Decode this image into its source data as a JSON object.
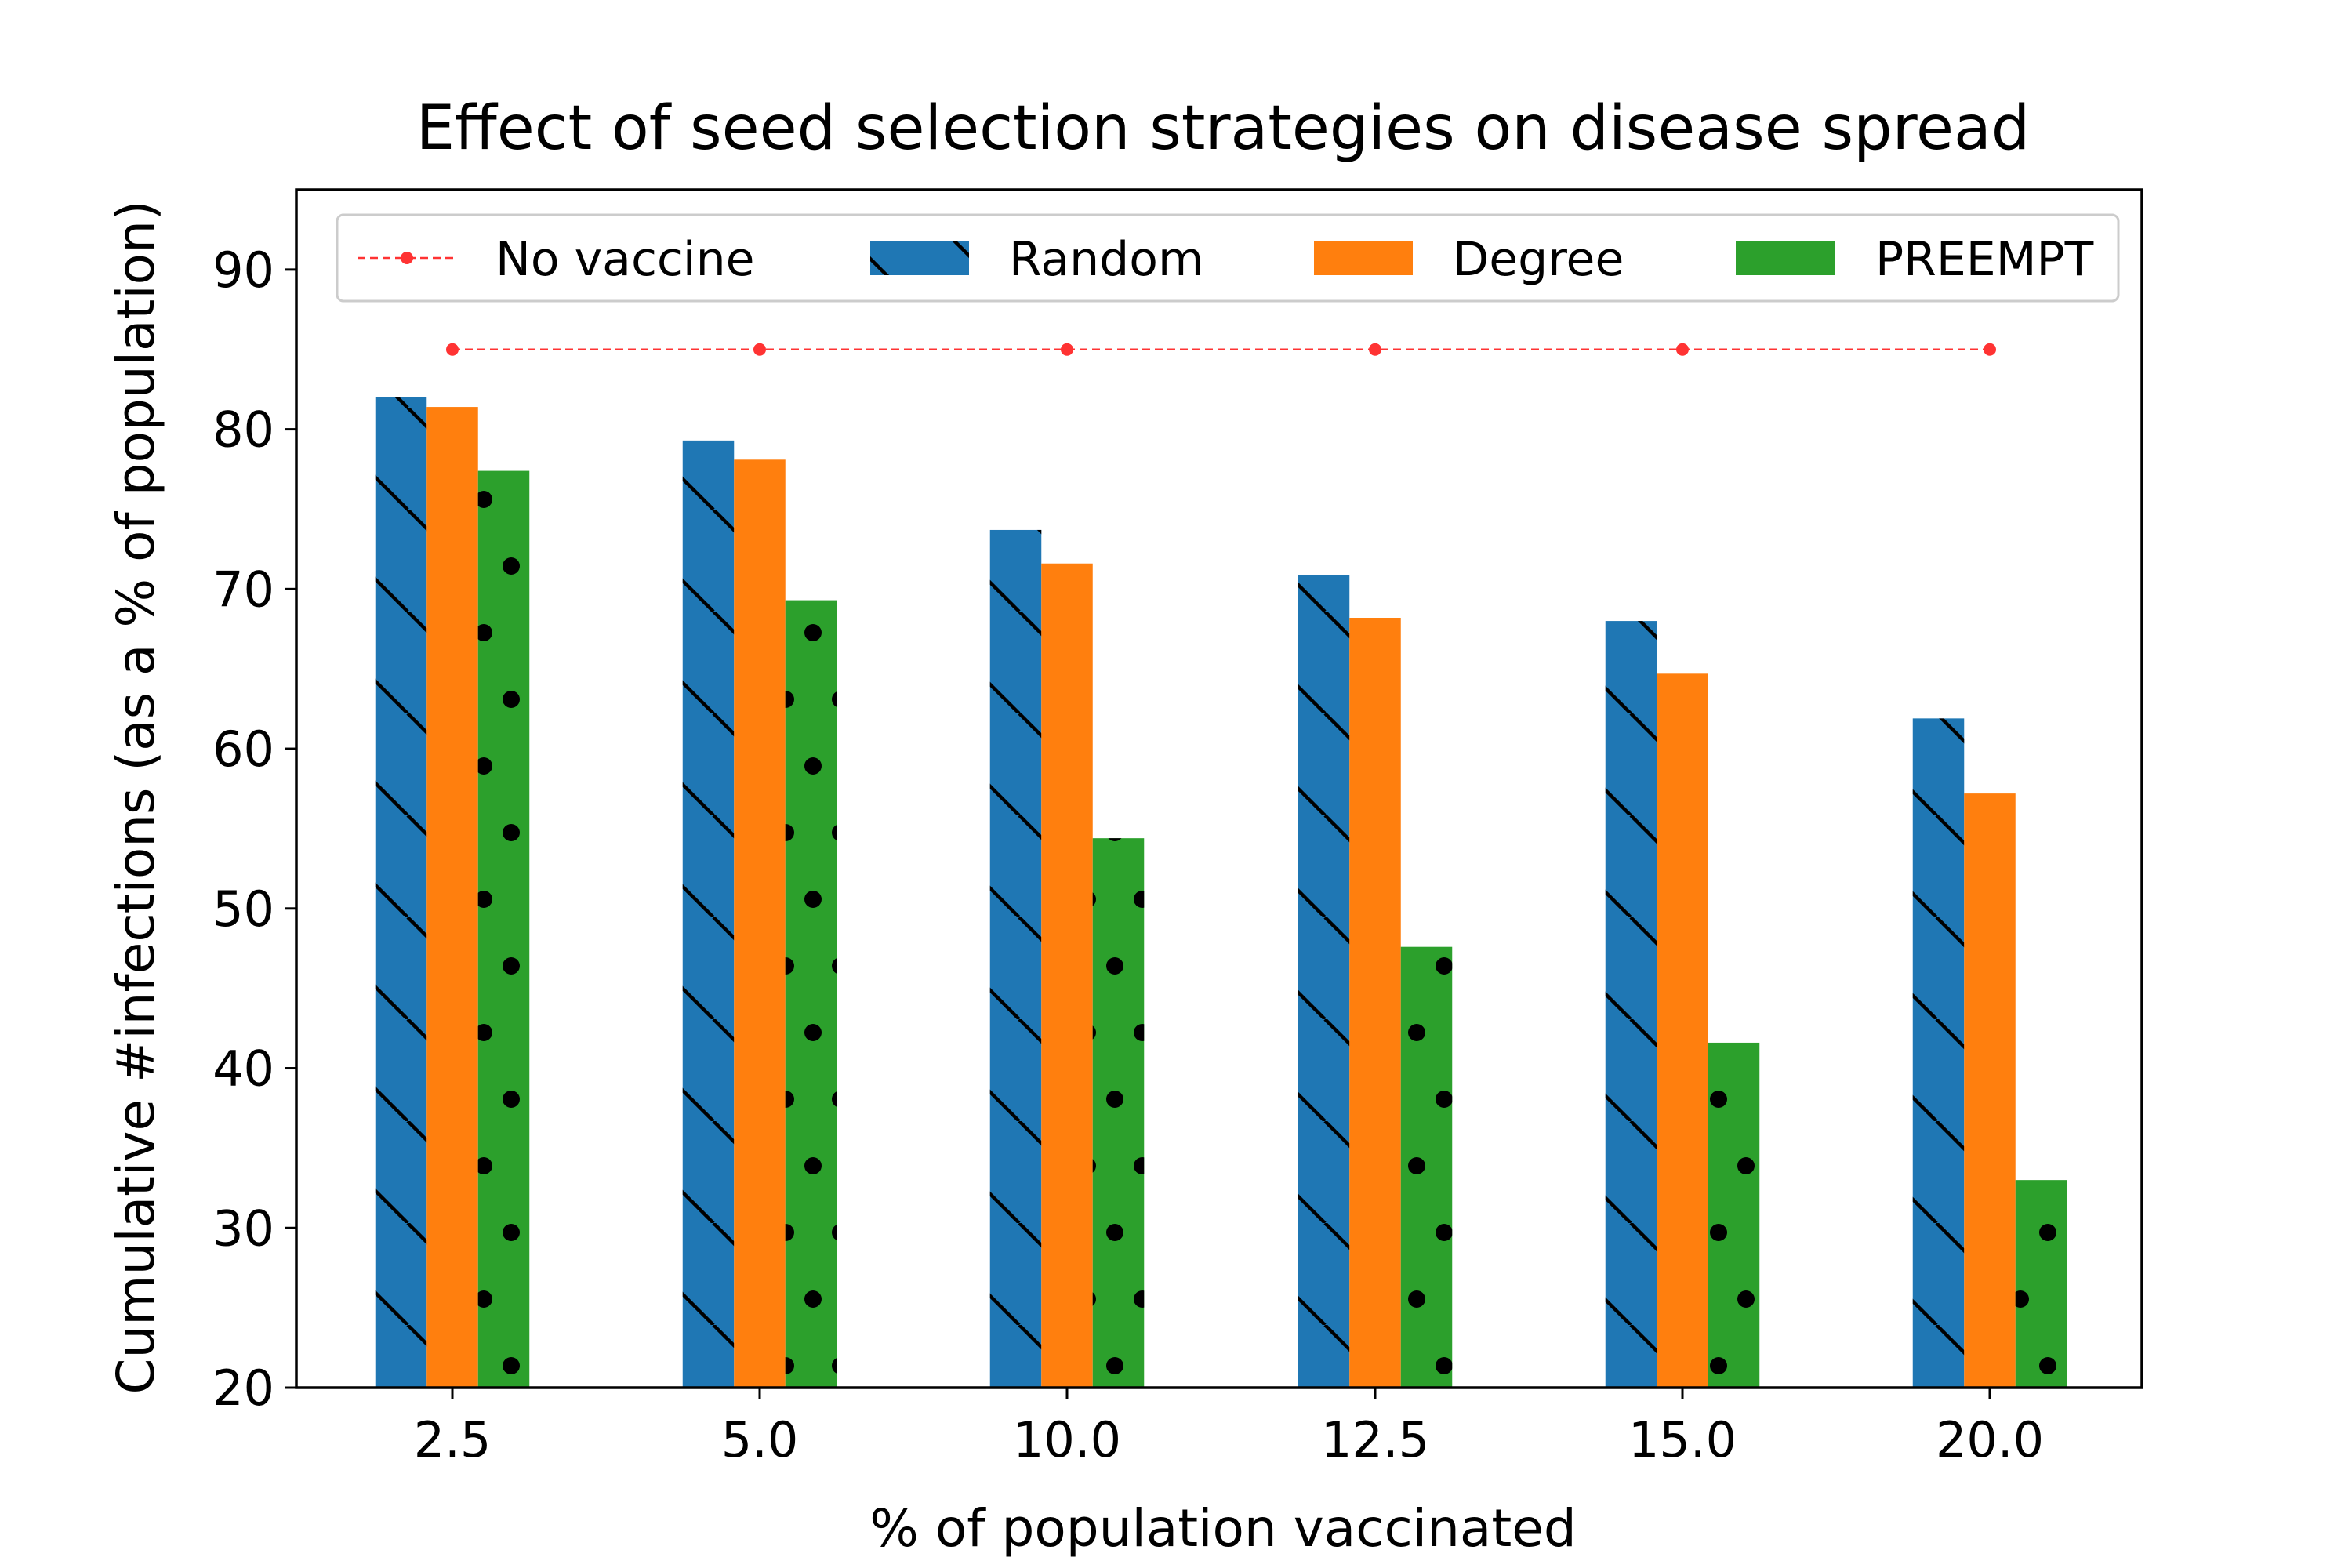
{
  "chart_data": {
    "type": "bar",
    "title": "Effect of seed selection strategies on disease spread",
    "xlabel": "% of population vaccinated",
    "ylabel": "Cumulative #infections (as a % of population)",
    "categories": [
      "2.5",
      "5.0",
      "10.0",
      "12.5",
      "15.0",
      "20.0"
    ],
    "ylim": [
      20,
      95
    ],
    "yticks": [
      20,
      30,
      40,
      50,
      60,
      70,
      80,
      90
    ],
    "series": [
      {
        "name": "Random",
        "color": "#1f77b4",
        "hatch": "backslash",
        "values": [
          82.0,
          79.3,
          73.7,
          70.9,
          68.0,
          61.9
        ]
      },
      {
        "name": "Degree",
        "color": "#ff7f0e",
        "hatch": "none",
        "values": [
          81.4,
          78.1,
          71.6,
          68.2,
          64.7,
          57.2
        ]
      },
      {
        "name": "PREEMPT",
        "color": "#2ca02c",
        "hatch": "dots",
        "values": [
          77.4,
          69.3,
          54.4,
          47.6,
          41.6,
          33.0
        ]
      }
    ],
    "reference_line": {
      "name": "No vaccine",
      "color": "#ff3333",
      "value": 85.0
    },
    "legend": {
      "position": "top",
      "labels": [
        "No vaccine",
        "Random",
        "Degree",
        "PREEMPT"
      ]
    },
    "grid": false
  }
}
